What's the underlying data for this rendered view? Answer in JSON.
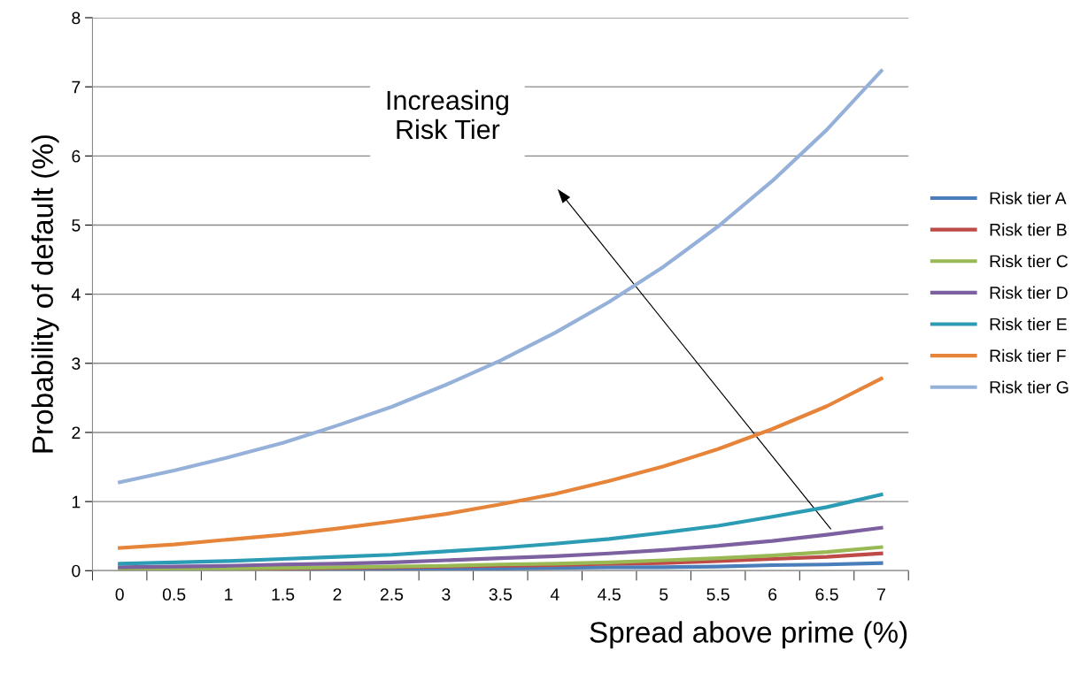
{
  "chart_data": {
    "type": "line",
    "xlabel": "Spread above prime (%)",
    "ylabel": "Probability of default (%)",
    "categories": [
      "0",
      "0.5",
      "1",
      "1.5",
      "2",
      "2.5",
      "3",
      "3.5",
      "4",
      "4.5",
      "5",
      "5.5",
      "6",
      "6.5",
      "7"
    ],
    "series": [
      {
        "name": "Risk tier A",
        "color": "#4a7ebb",
        "values": [
          null,
          null,
          null,
          0.02,
          0.02,
          0.02,
          0.03,
          0.03,
          0.04,
          0.05,
          0.05,
          0.06,
          0.08,
          0.09,
          0.11
        ]
      },
      {
        "name": "Risk tier B",
        "color": "#be4b48",
        "values": [
          null,
          null,
          0.03,
          0.03,
          0.04,
          0.05,
          0.06,
          0.07,
          0.08,
          0.1,
          0.11,
          0.14,
          0.17,
          0.2,
          0.25
        ]
      },
      {
        "name": "Risk tier C",
        "color": "#98b954",
        "values": [
          0.02,
          0.03,
          0.03,
          0.04,
          0.05,
          0.06,
          0.07,
          0.09,
          0.1,
          0.12,
          0.15,
          0.18,
          0.22,
          0.27,
          0.34
        ]
      },
      {
        "name": "Risk tier D",
        "color": "#7d60a0",
        "values": [
          0.05,
          0.06,
          0.07,
          0.09,
          0.1,
          0.12,
          0.15,
          0.18,
          0.21,
          0.25,
          0.3,
          0.36,
          0.43,
          0.52,
          0.62
        ]
      },
      {
        "name": "Risk tier E",
        "color": "#2c9cb4",
        "values": [
          0.1,
          0.12,
          0.14,
          0.17,
          0.2,
          0.23,
          0.28,
          0.33,
          0.39,
          0.46,
          0.55,
          0.65,
          0.78,
          0.92,
          1.1
        ]
      },
      {
        "name": "Risk tier F",
        "color": "#e6843a",
        "values": [
          0.33,
          0.38,
          0.45,
          0.52,
          0.61,
          0.71,
          0.82,
          0.96,
          1.11,
          1.3,
          1.51,
          1.76,
          2.05,
          2.38,
          2.78
        ]
      },
      {
        "name": "Risk tier G",
        "color": "#95b1d9",
        "values": [
          1.28,
          1.45,
          1.64,
          1.85,
          2.1,
          2.37,
          2.69,
          3.04,
          3.44,
          3.89,
          4.4,
          4.98,
          5.64,
          6.38,
          7.23
        ]
      }
    ],
    "ylim": [
      0,
      8
    ],
    "yticks": [
      0,
      1,
      2,
      3,
      4,
      5,
      6,
      7,
      8
    ],
    "grid": "y",
    "legend": "right",
    "marker": "none",
    "line_style": "solid",
    "annotations": [
      "Increasing\nRisk Tier"
    ]
  }
}
